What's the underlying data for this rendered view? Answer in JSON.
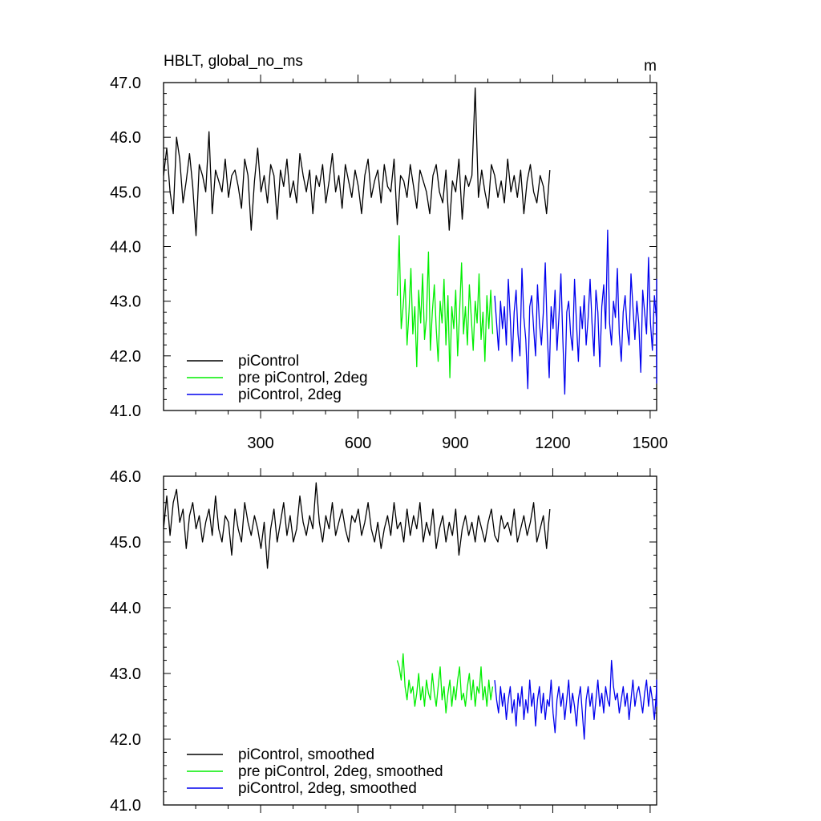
{
  "chart_data": [
    {
      "type": "line",
      "title": "HBLT, global_no_ms",
      "units": "m",
      "xlim": [
        1,
        1520
      ],
      "ylim": [
        41.0,
        47.0
      ],
      "xticks": [
        300,
        600,
        900,
        1200,
        1500
      ],
      "xtick_labels": [
        "300",
        "600",
        "900",
        "1200",
        "1500"
      ],
      "yticks": [
        41.0,
        42.0,
        43.0,
        44.0,
        45.0,
        46.0,
        47.0
      ],
      "ytick_labels": [
        "41.0",
        "42.0",
        "43.0",
        "44.0",
        "45.0",
        "46.0",
        "47.0"
      ],
      "legend_position": "bottom-left",
      "series": [
        {
          "name": "piControl",
          "color": "#000000",
          "x_start": 1,
          "x_step": 10,
          "values": [
            45.3,
            45.8,
            45.0,
            44.6,
            46.0,
            45.6,
            44.8,
            45.2,
            45.7,
            45.1,
            44.2,
            45.5,
            45.3,
            45.0,
            46.1,
            44.6,
            45.4,
            45.2,
            45.0,
            45.6,
            44.9,
            45.3,
            45.4,
            45.1,
            44.7,
            45.6,
            45.3,
            44.3,
            45.2,
            45.8,
            45.0,
            45.3,
            44.8,
            45.5,
            45.3,
            44.5,
            45.4,
            45.1,
            45.6,
            44.9,
            45.2,
            44.8,
            45.7,
            45.3,
            45.0,
            45.4,
            44.6,
            45.3,
            45.1,
            45.5,
            44.8,
            45.2,
            45.7,
            45.0,
            45.3,
            44.7,
            45.5,
            45.2,
            44.9,
            45.4,
            45.1,
            44.6,
            45.3,
            45.6,
            44.9,
            45.2,
            45.4,
            44.8,
            45.5,
            45.1,
            45.0,
            45.6,
            44.4,
            45.3,
            45.2,
            44.9,
            45.5,
            45.1,
            44.7,
            45.4,
            45.2,
            45.0,
            44.6,
            45.3,
            45.5,
            45.0,
            44.8,
            45.4,
            44.3,
            45.2,
            45.0,
            45.6,
            44.5,
            45.3,
            45.1,
            45.3,
            46.9,
            44.9,
            45.4,
            45.0,
            44.7,
            45.5,
            45.3,
            44.9,
            45.2,
            44.8,
            45.6,
            45.0,
            45.3,
            44.9,
            45.4,
            44.6,
            45.2,
            45.5,
            45.0,
            44.8,
            45.3,
            45.1,
            44.6,
            45.4
          ]
        },
        {
          "name": "pre piControl, 2deg",
          "color": "#00ee00",
          "x_start": 721,
          "x_step": 6,
          "values": [
            43.1,
            44.2,
            42.5,
            42.9,
            43.4,
            42.2,
            42.8,
            43.6,
            42.4,
            42.9,
            41.8,
            43.2,
            42.6,
            43.5,
            42.3,
            42.7,
            43.9,
            42.1,
            42.8,
            43.3,
            42.5,
            41.9,
            43.0,
            42.6,
            43.4,
            42.2,
            43.1,
            41.6,
            42.9,
            42.5,
            43.2,
            42.0,
            42.8,
            43.7,
            42.4,
            42.9,
            42.2,
            43.3,
            42.7,
            42.1,
            43.0,
            42.6,
            43.5,
            42.3,
            42.8,
            41.9,
            43.1,
            42.5,
            43.2,
            42.4
          ]
        },
        {
          "name": "piControl, 2deg",
          "color": "#0000ee",
          "x_start": 1021,
          "x_step": 6,
          "values": [
            43.1,
            42.6,
            42.1,
            43.0,
            42.5,
            42.9,
            42.2,
            43.4,
            42.7,
            41.9,
            42.8,
            43.2,
            42.4,
            42.0,
            43.6,
            42.7,
            42.3,
            41.4,
            42.9,
            43.1,
            42.5,
            42.0,
            43.3,
            42.6,
            42.2,
            42.8,
            43.7,
            42.4,
            41.6,
            42.9,
            42.5,
            43.2,
            42.1,
            42.7,
            43.5,
            42.3,
            41.3,
            42.8,
            43.0,
            42.4,
            42.1,
            43.4,
            42.6,
            41.9,
            42.9,
            42.5,
            43.1,
            42.2,
            42.7,
            43.4,
            42.6,
            42.0,
            43.2,
            42.8,
            41.8,
            42.9,
            43.3,
            42.5,
            44.3,
            42.6,
            42.2,
            43.0,
            42.7,
            43.6,
            42.4,
            41.9,
            42.8,
            43.1,
            42.5,
            42.2,
            43.5,
            42.9,
            42.3,
            43.0,
            42.6,
            41.7,
            43.2,
            42.8,
            42.4,
            43.8,
            42.6,
            42.1,
            43.1,
            42.7,
            41.5,
            42.9,
            43.4,
            42.6,
            42.3,
            42.8
          ]
        }
      ]
    },
    {
      "type": "line",
      "title": "",
      "xlim": [
        1,
        1520
      ],
      "ylim": [
        41.0,
        46.0
      ],
      "yticks": [
        41.0,
        42.0,
        43.0,
        44.0,
        45.0,
        46.0
      ],
      "ytick_labels": [
        "41.0",
        "42.0",
        "43.0",
        "44.0",
        "45.0",
        "46.0"
      ],
      "xticks": [
        300,
        600,
        900,
        1200,
        1500
      ],
      "legend_position": "bottom-left",
      "series": [
        {
          "name": "piControl, smoothed",
          "color": "#000000",
          "x_start": 1,
          "x_step": 10,
          "values": [
            45.2,
            45.7,
            45.1,
            45.6,
            45.8,
            45.3,
            45.5,
            44.9,
            45.4,
            45.6,
            45.2,
            45.4,
            45.0,
            45.3,
            45.5,
            45.1,
            45.7,
            45.2,
            45.0,
            45.4,
            45.3,
            44.8,
            45.5,
            45.2,
            45.0,
            45.6,
            45.3,
            45.1,
            45.4,
            45.2,
            44.9,
            45.3,
            44.6,
            45.2,
            45.5,
            45.0,
            45.3,
            45.6,
            45.1,
            45.4,
            45.0,
            45.2,
            45.7,
            45.3,
            45.1,
            45.4,
            45.2,
            45.9,
            45.3,
            45.0,
            45.4,
            45.2,
            45.6,
            45.1,
            45.3,
            45.5,
            45.2,
            45.0,
            45.4,
            45.3,
            45.5,
            45.1,
            45.3,
            45.6,
            45.2,
            45.0,
            45.3,
            44.9,
            45.2,
            45.4,
            45.1,
            45.6,
            45.2,
            45.3,
            45.0,
            45.5,
            45.1,
            45.4,
            45.2,
            45.6,
            45.0,
            45.3,
            45.1,
            45.5,
            44.9,
            45.2,
            45.4,
            45.0,
            45.3,
            45.1,
            45.5,
            44.8,
            45.2,
            45.4,
            45.1,
            45.3,
            45.0,
            45.4,
            45.2,
            45.0,
            45.3,
            45.5,
            45.1,
            45.0,
            45.4,
            45.2,
            45.3,
            45.1,
            45.5,
            45.0,
            45.2,
            45.4,
            45.1,
            45.3,
            45.6,
            45.0,
            45.2,
            45.4,
            44.9,
            45.5
          ]
        },
        {
          "name": "pre piControl, 2deg, smoothed",
          "color": "#00ee00",
          "x_start": 721,
          "x_step": 6,
          "values": [
            43.2,
            43.1,
            42.9,
            43.3,
            42.8,
            42.6,
            42.9,
            42.7,
            42.8,
            42.5,
            42.7,
            43.0,
            42.6,
            42.8,
            42.5,
            42.9,
            42.7,
            42.6,
            43.0,
            42.7,
            42.5,
            42.8,
            43.1,
            42.6,
            42.8,
            42.4,
            42.7,
            42.9,
            42.5,
            42.8,
            42.6,
            42.9,
            43.1,
            42.6,
            42.7,
            42.5,
            42.8,
            43.0,
            42.6,
            42.9,
            42.5,
            42.8,
            42.7,
            43.1,
            42.6,
            42.8,
            42.5,
            42.9,
            42.6,
            42.8
          ]
        },
        {
          "name": "piControl, 2deg, smoothed",
          "color": "#0000ee",
          "x_start": 1021,
          "x_step": 6,
          "values": [
            42.9,
            42.6,
            42.4,
            42.8,
            42.5,
            42.7,
            42.3,
            42.6,
            42.8,
            42.4,
            42.6,
            42.2,
            42.7,
            42.5,
            42.8,
            42.3,
            42.6,
            42.4,
            42.9,
            42.5,
            42.7,
            42.2,
            42.6,
            42.8,
            42.4,
            42.7,
            42.3,
            42.6,
            42.5,
            42.9,
            42.4,
            42.1,
            42.6,
            42.8,
            42.5,
            42.7,
            42.3,
            42.6,
            42.9,
            42.4,
            42.7,
            42.5,
            42.2,
            42.6,
            42.8,
            42.4,
            42.0,
            42.6,
            42.8,
            42.5,
            42.7,
            42.3,
            42.6,
            42.9,
            42.5,
            42.7,
            42.4,
            42.8,
            42.6,
            42.5,
            43.2,
            42.8,
            42.6,
            42.7,
            42.4,
            42.6,
            42.8,
            42.5,
            42.7,
            42.3,
            42.6,
            42.9,
            42.5,
            42.7,
            42.8,
            42.6,
            42.4,
            42.7,
            42.9,
            42.5,
            42.8,
            42.6,
            42.3,
            42.7,
            42.9,
            42.6,
            42.8,
            42.5,
            42.7,
            42.6
          ]
        }
      ]
    }
  ]
}
